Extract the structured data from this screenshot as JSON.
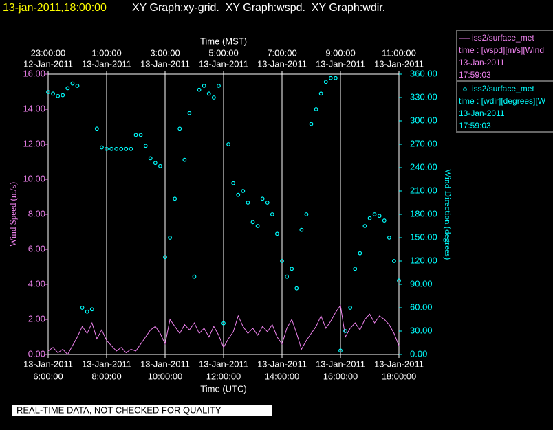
{
  "chart_data": {
    "type": "xy",
    "timestamp": "13-jan-2011,18:00:00",
    "title": "XY Graph:xy-grid.  XY Graph:wspd.  XY Graph:wdir.",
    "x_top_label": "Time (MST)",
    "x_label": "Time (UTC)",
    "y_label": "Wind Speed (m/s)",
    "y2_label": "Wind Direction (degrees)",
    "footer": "REAL-TIME DATA, NOT CHECKED FOR QUALITY",
    "grid": true,
    "xlim": [
      "13-Jan-2011 06:00:00",
      "13-Jan-2011 18:00:00"
    ],
    "xticks": [
      {
        "value": "13-Jan-2011 06:00:00",
        "date": "13-Jan-2011",
        "time": "6:00:00"
      },
      {
        "value": "13-Jan-2011 08:00:00",
        "date": "13-Jan-2011",
        "time": "8:00:00"
      },
      {
        "value": "13-Jan-2011 10:00:00",
        "date": "13-Jan-2011",
        "time": "10:00:00"
      },
      {
        "value": "13-Jan-2011 12:00:00",
        "date": "13-Jan-2011",
        "time": "12:00:00"
      },
      {
        "value": "13-Jan-2011 14:00:00",
        "date": "13-Jan-2011",
        "time": "14:00:00"
      },
      {
        "value": "13-Jan-2011 16:00:00",
        "date": "13-Jan-2011",
        "time": "16:00:00"
      },
      {
        "value": "13-Jan-2011 18:00:00",
        "date": "13-Jan-2011",
        "time": "18:00:00"
      }
    ],
    "xticks_top": [
      {
        "value": "13-Jan-2011 06:00:00",
        "date": "12-Jan-2011",
        "time": "23:00:00"
      },
      {
        "value": "13-Jan-2011 08:00:00",
        "date": "13-Jan-2011",
        "time": "1:00:00"
      },
      {
        "value": "13-Jan-2011 10:00:00",
        "date": "13-Jan-2011",
        "time": "3:00:00"
      },
      {
        "value": "13-Jan-2011 12:00:00",
        "date": "13-Jan-2011",
        "time": "5:00:00"
      },
      {
        "value": "13-Jan-2011 14:00:00",
        "date": "13-Jan-2011",
        "time": "7:00:00"
      },
      {
        "value": "13-Jan-2011 16:00:00",
        "date": "13-Jan-2011",
        "time": "9:00:00"
      },
      {
        "value": "13-Jan-2011 18:00:00",
        "date": "13-Jan-2011",
        "time": "11:00:00"
      }
    ],
    "ylim": [
      0,
      16
    ],
    "yticks": [
      {
        "value": 0,
        "label": "0.00"
      },
      {
        "value": 2,
        "label": "2.00"
      },
      {
        "value": 4,
        "label": "4.00"
      },
      {
        "value": 6,
        "label": "6.00"
      },
      {
        "value": 8,
        "label": "8.00"
      },
      {
        "value": 10,
        "label": "10.00"
      },
      {
        "value": 12,
        "label": "12.00"
      },
      {
        "value": 14,
        "label": "14.00"
      },
      {
        "value": 16,
        "label": "16.00"
      }
    ],
    "y2lim": [
      0,
      360
    ],
    "y2ticks": [
      {
        "value": 0,
        "label": "0.00"
      },
      {
        "value": 30,
        "label": "30.00"
      },
      {
        "value": 60,
        "label": "60.00"
      },
      {
        "value": 90,
        "label": "90.00"
      },
      {
        "value": 120,
        "label": "120.00"
      },
      {
        "value": 150,
        "label": "150.00"
      },
      {
        "value": 180,
        "label": "180.00"
      },
      {
        "value": 210,
        "label": "210.00"
      },
      {
        "value": 240,
        "label": "240.00"
      },
      {
        "value": 270,
        "label": "270.00"
      },
      {
        "value": 300,
        "label": "300.00"
      },
      {
        "value": 330,
        "label": "330.00"
      },
      {
        "value": 360,
        "label": "360.00"
      }
    ],
    "x": [
      "13-Jan-2011 06:00:00",
      "13-Jan-2011 06:10:00",
      "13-Jan-2011 06:20:00",
      "13-Jan-2011 06:30:00",
      "13-Jan-2011 06:40:00",
      "13-Jan-2011 06:50:00",
      "13-Jan-2011 07:00:00",
      "13-Jan-2011 07:10:00",
      "13-Jan-2011 07:20:00",
      "13-Jan-2011 07:30:00",
      "13-Jan-2011 07:40:00",
      "13-Jan-2011 07:50:00",
      "13-Jan-2011 08:00:00",
      "13-Jan-2011 08:10:00",
      "13-Jan-2011 08:20:00",
      "13-Jan-2011 08:30:00",
      "13-Jan-2011 08:40:00",
      "13-Jan-2011 08:50:00",
      "13-Jan-2011 09:00:00",
      "13-Jan-2011 09:10:00",
      "13-Jan-2011 09:20:00",
      "13-Jan-2011 09:30:00",
      "13-Jan-2011 09:40:00",
      "13-Jan-2011 09:50:00",
      "13-Jan-2011 10:00:00",
      "13-Jan-2011 10:10:00",
      "13-Jan-2011 10:20:00",
      "13-Jan-2011 10:30:00",
      "13-Jan-2011 10:40:00",
      "13-Jan-2011 10:50:00",
      "13-Jan-2011 11:00:00",
      "13-Jan-2011 11:10:00",
      "13-Jan-2011 11:20:00",
      "13-Jan-2011 11:30:00",
      "13-Jan-2011 11:40:00",
      "13-Jan-2011 11:50:00",
      "13-Jan-2011 12:00:00",
      "13-Jan-2011 12:10:00",
      "13-Jan-2011 12:20:00",
      "13-Jan-2011 12:30:00",
      "13-Jan-2011 12:40:00",
      "13-Jan-2011 12:50:00",
      "13-Jan-2011 13:00:00",
      "13-Jan-2011 13:10:00",
      "13-Jan-2011 13:20:00",
      "13-Jan-2011 13:30:00",
      "13-Jan-2011 13:40:00",
      "13-Jan-2011 13:50:00",
      "13-Jan-2011 14:00:00",
      "13-Jan-2011 14:10:00",
      "13-Jan-2011 14:20:00",
      "13-Jan-2011 14:30:00",
      "13-Jan-2011 14:40:00",
      "13-Jan-2011 14:50:00",
      "13-Jan-2011 15:00:00",
      "13-Jan-2011 15:10:00",
      "13-Jan-2011 15:20:00",
      "13-Jan-2011 15:30:00",
      "13-Jan-2011 15:40:00",
      "13-Jan-2011 15:50:00",
      "13-Jan-2011 16:00:00",
      "13-Jan-2011 16:10:00",
      "13-Jan-2011 16:20:00",
      "13-Jan-2011 16:30:00",
      "13-Jan-2011 16:40:00",
      "13-Jan-2011 16:50:00",
      "13-Jan-2011 17:00:00",
      "13-Jan-2011 17:10:00",
      "13-Jan-2011 17:20:00",
      "13-Jan-2011 17:30:00",
      "13-Jan-2011 17:40:00",
      "13-Jan-2011 17:50:00",
      "13-Jan-2011 18:00:00"
    ],
    "series": [
      {
        "name": "iss2/surface_met",
        "color": "#ee82ee",
        "marker": "line",
        "legend_lines": [
          "time : [wspd][m/s][Wind",
          "13-Jan-2011",
          "17:59:03"
        ],
        "values": [
          0.2,
          0.4,
          0.1,
          0.3,
          0.0,
          0.5,
          1.0,
          1.6,
          1.2,
          1.8,
          0.9,
          1.4,
          0.8,
          0.5,
          0.2,
          0.4,
          0.1,
          0.3,
          0.2,
          0.6,
          1.0,
          1.4,
          1.6,
          1.2,
          0.6,
          2.0,
          1.6,
          1.2,
          1.7,
          1.4,
          1.8,
          1.2,
          1.5,
          1.0,
          1.6,
          1.1,
          0.4,
          0.9,
          1.3,
          2.2,
          1.6,
          1.2,
          1.5,
          1.1,
          1.6,
          1.3,
          1.7,
          1.0,
          0.6,
          1.5,
          2.0,
          1.2,
          0.3,
          0.8,
          1.2,
          1.6,
          2.2,
          1.5,
          1.9,
          2.4,
          2.8,
          1.0,
          1.5,
          1.8,
          1.4,
          2.0,
          2.3,
          1.8,
          2.2,
          2.0,
          1.7,
          1.2,
          0.5
        ]
      },
      {
        "name": "iss2/surface_met",
        "color": "#00ffff",
        "marker": "circle",
        "axis": "y2",
        "legend_lines": [
          "time : [wdir][degrees][W",
          "13-Jan-2011",
          "17:59:03"
        ],
        "values": [
          337,
          335,
          332,
          333,
          342,
          348,
          345,
          60,
          55,
          58,
          290,
          266,
          264,
          264,
          264,
          264,
          264,
          264,
          282,
          282,
          268,
          252,
          246,
          242,
          125,
          150,
          200,
          290,
          250,
          310,
          100,
          340,
          345,
          335,
          330,
          345,
          40,
          270,
          220,
          205,
          210,
          195,
          170,
          165,
          200,
          195,
          180,
          155,
          120,
          100,
          110,
          85,
          160,
          180,
          296,
          315,
          335,
          350,
          355,
          355,
          5,
          30,
          60,
          110,
          130,
          165,
          175,
          180,
          178,
          172,
          150,
          120,
          95
        ]
      }
    ]
  }
}
